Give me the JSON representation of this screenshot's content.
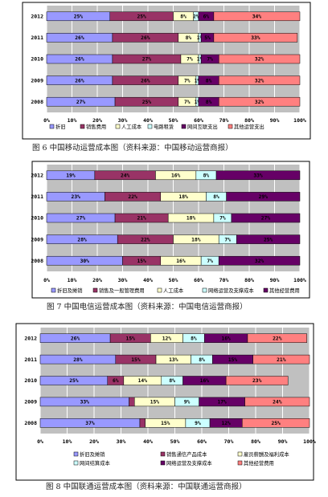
{
  "chart_data": [
    {
      "type": "bar",
      "orientation": "horizontal",
      "stacked": "percent",
      "caption": "图 6 中国移动运营成本图（资料来源：中国移动运营商报）",
      "categories": [
        "2012",
        "2011",
        "2010",
        "2009",
        "2008"
      ],
      "xticks": [
        "0%",
        "10%",
        "20%",
        "30%",
        "40%",
        "50%",
        "60%",
        "70%",
        "80%",
        "90%",
        "100%"
      ],
      "xlim": [
        0,
        100
      ],
      "legend_position": "bottom",
      "grid": true,
      "series": [
        {
          "name": "折旧",
          "color": "#9999ff",
          "values": [
            25,
            26,
            26,
            26,
            27
          ],
          "labels": [
            "25%",
            "26%",
            "26%",
            "26%",
            "27%"
          ]
        },
        {
          "name": "销售费用",
          "color": "#993366",
          "values": [
            25,
            26,
            27,
            26,
            25
          ],
          "labels": [
            "25%",
            "26%",
            "27%",
            "26%",
            "25%"
          ]
        },
        {
          "name": "人工成本",
          "color": "#ffffcc",
          "values": [
            8,
            8,
            7,
            7,
            7
          ],
          "labels": [
            "8%",
            "8%",
            "7%",
            "7%",
            "7%"
          ]
        },
        {
          "name": "电路租赁",
          "color": "#ccffff",
          "values": [
            2,
            1,
            1,
            1,
            1
          ],
          "labels": [
            "2%",
            "1%",
            "1%",
            "1%",
            "1%"
          ]
        },
        {
          "name": "网间互联支出",
          "color": "#660066",
          "values": [
            6,
            5,
            7,
            8,
            8
          ],
          "labels": [
            "6%",
            "5%",
            "7%",
            "8%",
            "8%"
          ]
        },
        {
          "name": "其他运营支出",
          "color": "#ff8080",
          "values": [
            34,
            33,
            32,
            32,
            32
          ],
          "labels": [
            "34%",
            "33%",
            "32%",
            "32%",
            "32%"
          ]
        }
      ]
    },
    {
      "type": "bar",
      "orientation": "horizontal",
      "stacked": "percent",
      "caption": "图 7 中国电信运营成本图（资料来源：中国电信运营商报）",
      "categories": [
        "2012",
        "2011",
        "2010",
        "2009",
        "2008"
      ],
      "xticks": [
        "0%",
        "10%",
        "20%",
        "30%",
        "40%",
        "50%",
        "60%",
        "70%",
        "80%",
        "90%",
        "100%"
      ],
      "xlim": [
        0,
        100
      ],
      "legend_position": "bottom",
      "grid": true,
      "series": [
        {
          "name": "折旧及摊销",
          "color": "#9999ff",
          "values": [
            19,
            23,
            27,
            28,
            30
          ],
          "labels": [
            "19%",
            "23%",
            "27%",
            "28%",
            "30%"
          ]
        },
        {
          "name": "销售及一般管理费用",
          "color": "#993366",
          "values": [
            24,
            22,
            21,
            22,
            15
          ],
          "labels": [
            "24%",
            "22%",
            "21%",
            "22%",
            "15%"
          ]
        },
        {
          "name": "人工成本",
          "color": "#ffffcc",
          "values": [
            16,
            18,
            18,
            18,
            16
          ],
          "labels": [
            "16%",
            "18%",
            "18%",
            "18%",
            "16%"
          ]
        },
        {
          "name": "网络运营及支撑成本",
          "color": "#ccffff",
          "values": [
            8,
            8,
            7,
            7,
            7
          ],
          "labels": [
            "8%",
            "8%",
            "7%",
            "7%",
            "7%"
          ]
        },
        {
          "name": "其他经营费用",
          "color": "#660066",
          "values": [
            33,
            29,
            27,
            25,
            32
          ],
          "labels": [
            "33%",
            "29%",
            "27%",
            "25%",
            "32%"
          ]
        }
      ]
    },
    {
      "type": "bar",
      "orientation": "horizontal",
      "stacked": "percent",
      "caption": "图 8 中国联通运营成本图（资料来源：中国联通运营商报）",
      "categories": [
        "2012",
        "2011",
        "2010",
        "2009",
        "2008"
      ],
      "xticks": [
        "0%",
        "10%",
        "20%",
        "30%",
        "40%",
        "50%",
        "60%",
        "70%",
        "80%",
        "90%",
        "100%"
      ],
      "xlim": [
        0,
        100
      ],
      "legend_position": "bottom",
      "grid": true,
      "series": [
        {
          "name": "折旧及摊销",
          "color": "#9999ff",
          "values": [
            26,
            28,
            25,
            33,
            37
          ],
          "labels": [
            "26%",
            "28%",
            "25%",
            "33%",
            "37%"
          ]
        },
        {
          "name": "销售通信产品成本",
          "color": "#993366",
          "values": [
            15,
            15,
            6,
            2,
            2
          ],
          "labels": [
            "15%",
            "15%",
            "6%",
            "",
            ""
          ]
        },
        {
          "name": "雇员薪酬及福利成本",
          "color": "#ffffcc",
          "values": [
            12,
            13,
            14,
            15,
            15
          ],
          "labels": [
            "12%",
            "13%",
            "14%",
            "15%",
            "15%"
          ]
        },
        {
          "name": "网间结算成本",
          "color": "#ccffff",
          "values": [
            8,
            8,
            8,
            9,
            9
          ],
          "labels": [
            "8%",
            "8%",
            "8%",
            "9%",
            "9%"
          ]
        },
        {
          "name": "网络运营及支撑成本",
          "color": "#660066",
          "values": [
            16,
            15,
            16,
            17,
            12
          ],
          "labels": [
            "16%",
            "15%",
            "16%",
            "17%",
            "12%"
          ]
        },
        {
          "name": "其他经营费用",
          "color": "#ff8080",
          "values": [
            22,
            21,
            23,
            24,
            25
          ],
          "labels": [
            "22%",
            "21%",
            "23%",
            "24%",
            "25%"
          ]
        }
      ]
    }
  ]
}
